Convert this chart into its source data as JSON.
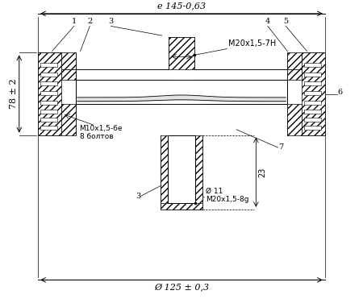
{
  "bg_color": "#ffffff",
  "annotations": {
    "top_dim": "e 145-0,63",
    "left_dim": "78 ± 2",
    "bottom_dim": "Ø 125 ± 0,3",
    "label1": "1",
    "label2": "2",
    "label3": "3",
    "label4": "4",
    "label5": "5",
    "label6": "6",
    "label7": "7",
    "thread1": "M20x1,5-7H",
    "thread2": "M10x1,5-6e\n8 болтов",
    "thread3": "Ø 11\nM20x1,5-8g",
    "dim23": "23"
  }
}
